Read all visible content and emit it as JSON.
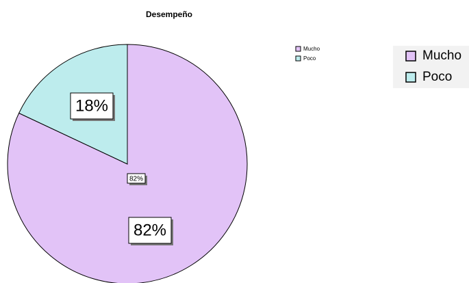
{
  "chart_data": {
    "type": "pie",
    "title": "Desempeño",
    "categories": [
      "Mucho",
      "Poco"
    ],
    "values": [
      82,
      18
    ],
    "value_labels": [
      "82%",
      "18%"
    ],
    "colors": [
      "#e2c3f7",
      "#bdeced"
    ]
  }
}
